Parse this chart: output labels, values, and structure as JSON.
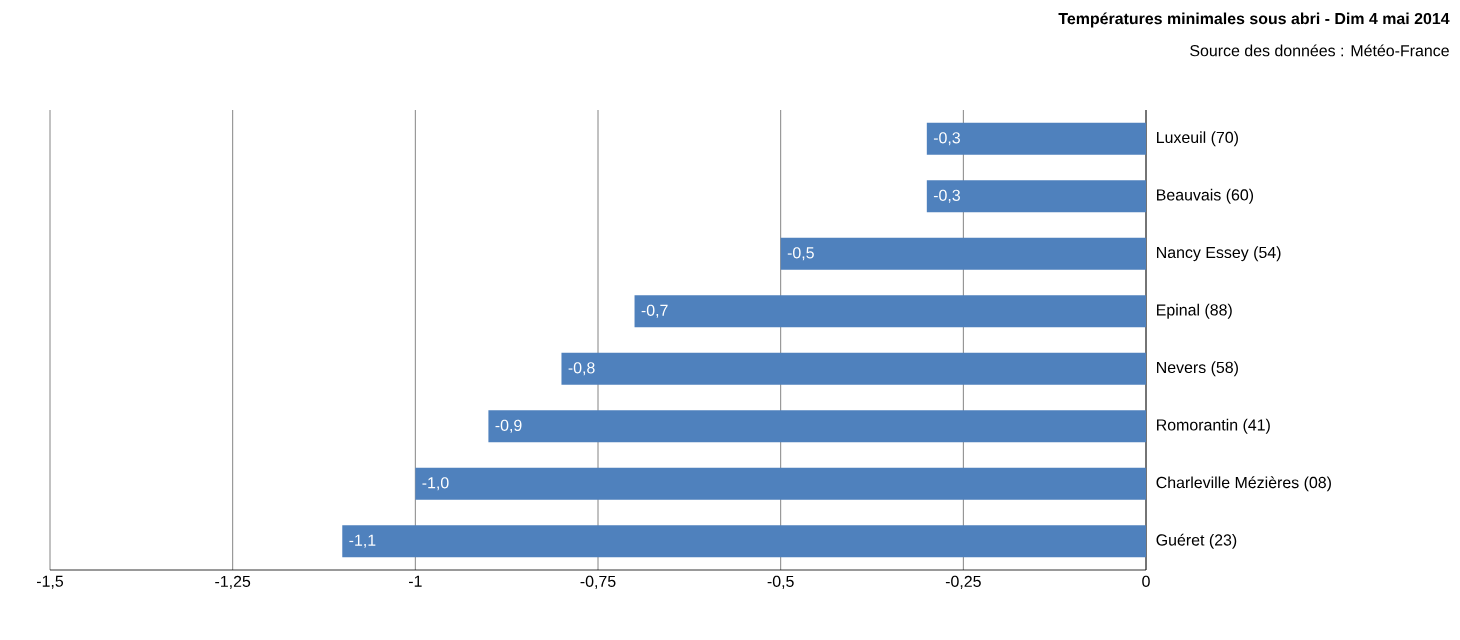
{
  "chart_data": {
    "type": "bar",
    "orientation": "horizontal",
    "title": "Températures minimales sous abri - Dim 4 mai 2014",
    "annotations": [
      "Source des données : Météo-France"
    ],
    "categories": [
      "Luxeuil (70)",
      "Beauvais (60)",
      "Nancy Essey (54)",
      "Epinal (88)",
      "Nevers (58)",
      "Romorantin (41)",
      "Charleville Mézières (08)",
      "Guéret (23)"
    ],
    "values": [
      -0.3,
      -0.3,
      -0.5,
      -0.7,
      -0.8,
      -0.9,
      -1.0,
      -1.1
    ],
    "value_labels": [
      "-0,3",
      "-0,3",
      "-0,5",
      "-0,7",
      "-0,8",
      "-0,9",
      "-1,0",
      "-1,1"
    ],
    "color": "#4f81bd",
    "xlim": [
      -1.5,
      0
    ],
    "xticks": [
      {
        "value": -1.5,
        "label": "-1,5"
      },
      {
        "value": -1.25,
        "label": "-1,25"
      },
      {
        "value": -1,
        "label": "-1"
      },
      {
        "value": -0.75,
        "label": "-0,75"
      },
      {
        "value": -0.5,
        "label": "-0,5"
      },
      {
        "value": -0.25,
        "label": "-0,25"
      },
      {
        "value": 0,
        "label": "0"
      }
    ],
    "grid": "x"
  }
}
